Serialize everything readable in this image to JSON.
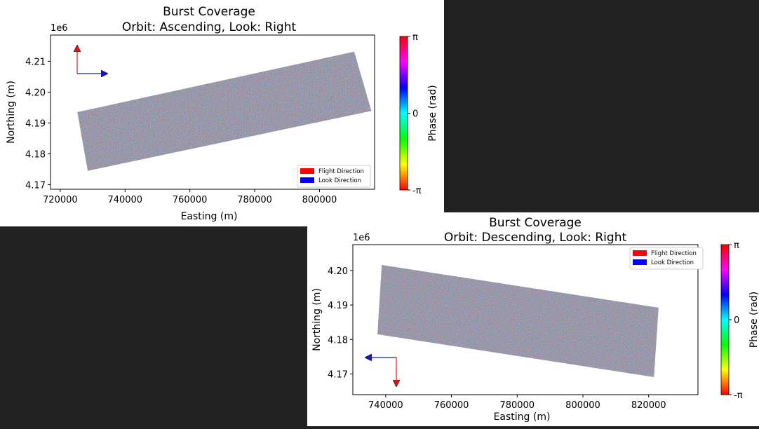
{
  "chart_data": [
    {
      "type": "heatmap",
      "title": "Burst Coverage",
      "subtitle": "Orbit: Ascending, Look: Right",
      "xlabel": "Easting (m)",
      "ylabel": "Northing (m)",
      "y_offset_label": "1e6",
      "xlim": [
        717000,
        817000
      ],
      "ylim": [
        4.1685,
        4.2185
      ],
      "x_ticks": [
        720000,
        740000,
        760000,
        780000,
        800000
      ],
      "x_tick_labels": [
        "720000",
        "740000",
        "760000",
        "780000",
        "800000"
      ],
      "y_ticks": [
        4.17,
        4.18,
        4.19,
        4.2,
        4.21
      ],
      "y_tick_labels": [
        "4.17",
        "4.18",
        "4.19",
        "4.20",
        "4.21"
      ],
      "burst_footprint": [
        [
          725300,
          4.1935
        ],
        [
          810700,
          4.2131
        ],
        [
          816000,
          4.1939
        ],
        [
          728500,
          4.1745
        ]
      ],
      "flight_direction": "north",
      "look_direction": "east",
      "legend": {
        "placement": "bottom-right",
        "entries": [
          {
            "label": "Flight Direction",
            "color": "#ff0000"
          },
          {
            "label": "Look Direction",
            "color": "#0000ff"
          }
        ]
      },
      "colorbar": {
        "label": "Phase (rad)",
        "tick_labels": [
          "π",
          "0",
          "-π"
        ],
        "colormap": "hsv"
      }
    },
    {
      "type": "heatmap",
      "title": "Burst Coverage",
      "subtitle": "Orbit: Descending, Look: Right",
      "xlabel": "Easting (m)",
      "ylabel": "Northing (m)",
      "y_offset_label": "1e6",
      "xlim": [
        730000,
        835000
      ],
      "ylim": [
        4.164,
        4.2075
      ],
      "x_ticks": [
        740000,
        760000,
        780000,
        800000,
        820000
      ],
      "x_tick_labels": [
        "740000",
        "760000",
        "780000",
        "800000",
        "820000"
      ],
      "y_ticks": [
        4.17,
        4.18,
        4.19,
        4.2
      ],
      "y_tick_labels": [
        "4.17",
        "4.18",
        "4.19",
        "4.20"
      ],
      "burst_footprint": [
        [
          738800,
          4.2016
        ],
        [
          823000,
          4.1892
        ],
        [
          821600,
          4.1691
        ],
        [
          737500,
          4.1815
        ]
      ],
      "flight_direction": "south",
      "look_direction": "west",
      "legend": {
        "placement": "top-right",
        "entries": [
          {
            "label": "Flight Direction",
            "color": "#ff0000"
          },
          {
            "label": "Look Direction",
            "color": "#0000ff"
          }
        ]
      },
      "colorbar": {
        "label": "Phase (rad)",
        "tick_labels": [
          "π",
          "0",
          "-π"
        ],
        "colormap": "hsv"
      }
    }
  ]
}
